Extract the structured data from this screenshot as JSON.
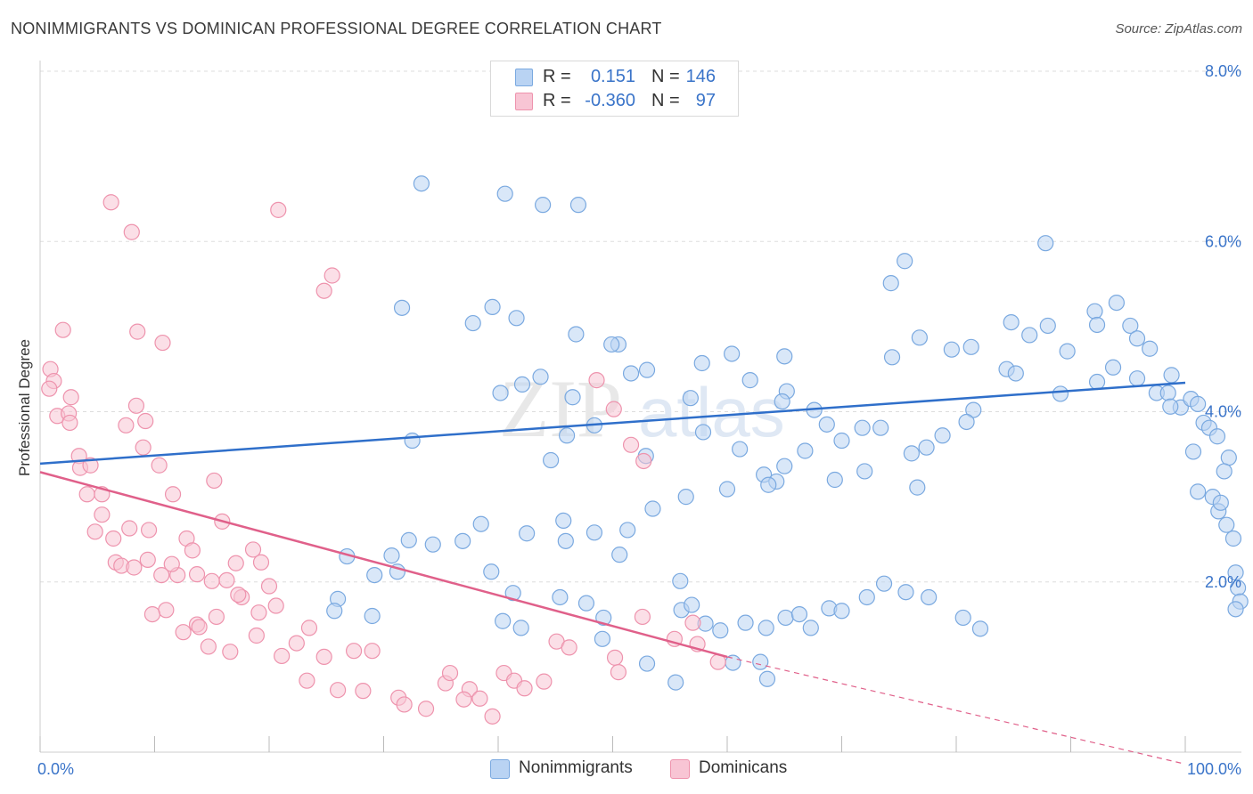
{
  "title": "NONIMMIGRANTS VS DOMINICAN PROFESSIONAL DEGREE CORRELATION CHART",
  "source": "Source: ZipAtlas.com",
  "watermark_zip": "ZIP",
  "watermark_atlas": "atlas",
  "colors": {
    "blue_fill": "#b9d3f3",
    "blue_stroke": "#7aa9e0",
    "blue_line": "#2f6fca",
    "pink_fill": "#f8c5d4",
    "pink_stroke": "#ee93ad",
    "pink_line": "#e0608a",
    "axis_text": "#3a74c9",
    "grid": "#dddddd"
  },
  "legend_top": {
    "rows": [
      {
        "r_label": "R =",
        "r_value": "0.151",
        "n_label": "N =",
        "n_value": "146",
        "color": "blue"
      },
      {
        "r_label": "R =",
        "r_value": "-0.360",
        "n_label": "N =",
        "n_value": "97",
        "color": "pink"
      }
    ]
  },
  "legend_bottom": {
    "items": [
      {
        "label": "Nonimmigrants",
        "color": "blue"
      },
      {
        "label": "Dominicans",
        "color": "pink"
      }
    ]
  },
  "chart_data": {
    "type": "scatter",
    "title": "NONIMMIGRANTS VS DOMINICAN PROFESSIONAL DEGREE CORRELATION CHART",
    "xlabel": "",
    "ylabel": "Professional Degree",
    "xlim": [
      0,
      100
    ],
    "ylim": [
      0,
      8.0
    ],
    "x_tick_labels": [
      "0.0%",
      "100.0%"
    ],
    "y_ticks": [
      2,
      4,
      6,
      8
    ],
    "y_tick_labels": [
      "2.0%",
      "4.0%",
      "6.0%",
      "8.0%"
    ],
    "grid": true,
    "legend_position": "top-center",
    "series": [
      {
        "name": "Nonimmigrants",
        "color": "blue",
        "r": 0.151,
        "n": 146,
        "trend": {
          "x": [
            0,
            100
          ],
          "y": [
            3.39,
            4.34
          ]
        },
        "points": [
          [
            40.6,
            6.56
          ],
          [
            43.9,
            6.43
          ],
          [
            47.0,
            6.43
          ],
          [
            33.3,
            6.68
          ],
          [
            87.8,
            5.98
          ],
          [
            75.5,
            5.77
          ],
          [
            74.3,
            5.51
          ],
          [
            39.5,
            5.23
          ],
          [
            37.8,
            5.04
          ],
          [
            41.6,
            5.1
          ],
          [
            31.6,
            5.22
          ],
          [
            46.8,
            4.91
          ],
          [
            50.5,
            4.79
          ],
          [
            49.9,
            4.79
          ],
          [
            65.0,
            4.65
          ],
          [
            53.0,
            4.49
          ],
          [
            43.7,
            4.41
          ],
          [
            57.8,
            4.57
          ],
          [
            60.4,
            4.68
          ],
          [
            56.8,
            4.16
          ],
          [
            46.0,
            3.72
          ],
          [
            57.9,
            3.76
          ],
          [
            51.6,
            4.45
          ],
          [
            62.0,
            4.37
          ],
          [
            65.2,
            4.24
          ],
          [
            64.8,
            4.12
          ],
          [
            32.5,
            3.66
          ],
          [
            48.4,
            3.84
          ],
          [
            42.1,
            4.32
          ],
          [
            40.2,
            4.22
          ],
          [
            44.6,
            3.43
          ],
          [
            46.5,
            4.17
          ],
          [
            52.9,
            3.48
          ],
          [
            70.0,
            3.66
          ],
          [
            61.1,
            3.56
          ],
          [
            63.2,
            3.26
          ],
          [
            67.6,
            4.02
          ],
          [
            68.7,
            3.85
          ],
          [
            71.8,
            3.81
          ],
          [
            73.4,
            3.81
          ],
          [
            74.4,
            4.64
          ],
          [
            76.8,
            4.87
          ],
          [
            79.6,
            4.73
          ],
          [
            81.3,
            4.76
          ],
          [
            84.4,
            4.5
          ],
          [
            85.2,
            4.45
          ],
          [
            89.1,
            4.21
          ],
          [
            89.7,
            4.71
          ],
          [
            92.3,
            4.35
          ],
          [
            93.7,
            4.52
          ],
          [
            84.8,
            5.05
          ],
          [
            86.4,
            4.9
          ],
          [
            88.0,
            5.01
          ],
          [
            92.1,
            5.18
          ],
          [
            92.3,
            5.02
          ],
          [
            94.0,
            5.28
          ],
          [
            95.2,
            5.01
          ],
          [
            95.8,
            4.86
          ],
          [
            96.9,
            4.74
          ],
          [
            95.8,
            4.39
          ],
          [
            97.5,
            4.22
          ],
          [
            99.6,
            4.05
          ],
          [
            98.8,
            4.43
          ],
          [
            98.5,
            4.22
          ],
          [
            98.7,
            4.06
          ],
          [
            100.5,
            4.15
          ],
          [
            101.1,
            4.09
          ],
          [
            101.6,
            3.87
          ],
          [
            102.1,
            3.81
          ],
          [
            102.8,
            3.71
          ],
          [
            100.7,
            3.53
          ],
          [
            101.1,
            3.06
          ],
          [
            102.4,
            3.0
          ],
          [
            102.9,
            2.83
          ],
          [
            103.6,
            2.67
          ],
          [
            104.2,
            2.51
          ],
          [
            104.4,
            2.11
          ],
          [
            104.6,
            1.93
          ],
          [
            104.8,
            1.77
          ],
          [
            104.4,
            1.68
          ],
          [
            103.8,
            3.46
          ],
          [
            103.4,
            3.3
          ],
          [
            103.1,
            2.93
          ],
          [
            81.5,
            4.02
          ],
          [
            80.9,
            3.88
          ],
          [
            78.8,
            3.72
          ],
          [
            77.4,
            3.58
          ],
          [
            76.1,
            3.51
          ],
          [
            76.6,
            3.11
          ],
          [
            72.0,
            3.3
          ],
          [
            69.4,
            3.2
          ],
          [
            66.8,
            3.54
          ],
          [
            65.0,
            3.36
          ],
          [
            64.3,
            3.18
          ],
          [
            63.6,
            3.14
          ],
          [
            60.0,
            3.09
          ],
          [
            56.4,
            3.0
          ],
          [
            53.5,
            2.86
          ],
          [
            51.3,
            2.61
          ],
          [
            50.6,
            2.32
          ],
          [
            48.4,
            2.58
          ],
          [
            45.7,
            2.72
          ],
          [
            45.9,
            2.48
          ],
          [
            42.5,
            2.57
          ],
          [
            38.5,
            2.68
          ],
          [
            36.9,
            2.48
          ],
          [
            34.3,
            2.44
          ],
          [
            32.2,
            2.49
          ],
          [
            30.7,
            2.31
          ],
          [
            31.2,
            2.12
          ],
          [
            29.2,
            2.08
          ],
          [
            26.8,
            2.3
          ],
          [
            26.0,
            1.8
          ],
          [
            25.7,
            1.66
          ],
          [
            29.0,
            1.6
          ],
          [
            39.4,
            2.12
          ],
          [
            41.3,
            1.87
          ],
          [
            45.4,
            1.82
          ],
          [
            47.7,
            1.75
          ],
          [
            56.0,
            1.67
          ],
          [
            49.2,
            1.58
          ],
          [
            55.9,
            2.01
          ],
          [
            56.9,
            1.73
          ],
          [
            58.1,
            1.51
          ],
          [
            59.4,
            1.43
          ],
          [
            61.6,
            1.52
          ],
          [
            63.4,
            1.46
          ],
          [
            65.1,
            1.58
          ],
          [
            66.3,
            1.62
          ],
          [
            67.3,
            1.46
          ],
          [
            68.9,
            1.69
          ],
          [
            70.0,
            1.66
          ],
          [
            72.2,
            1.82
          ],
          [
            73.7,
            1.98
          ],
          [
            75.6,
            1.88
          ],
          [
            77.6,
            1.82
          ],
          [
            80.6,
            1.58
          ],
          [
            82.1,
            1.45
          ],
          [
            60.5,
            1.05
          ],
          [
            62.9,
            1.06
          ],
          [
            63.5,
            0.86
          ],
          [
            40.4,
            1.54
          ],
          [
            42.0,
            1.46
          ],
          [
            49.1,
            1.33
          ],
          [
            53.0,
            1.04
          ],
          [
            55.5,
            0.82
          ]
        ]
      },
      {
        "name": "Dominicans",
        "color": "pink",
        "r": -0.36,
        "n": 97,
        "trend": {
          "x": [
            0,
            60
          ],
          "y": [
            3.29,
            1.12
          ],
          "dashed_to": {
            "x": 100,
            "y": -0.14
          }
        },
        "points": [
          [
            6.2,
            6.46
          ],
          [
            8.0,
            6.11
          ],
          [
            20.8,
            6.37
          ],
          [
            25.5,
            5.6
          ],
          [
            24.8,
            5.42
          ],
          [
            2.0,
            4.96
          ],
          [
            8.5,
            4.94
          ],
          [
            10.7,
            4.81
          ],
          [
            0.9,
            4.5
          ],
          [
            1.2,
            4.36
          ],
          [
            0.8,
            4.27
          ],
          [
            2.7,
            4.17
          ],
          [
            8.4,
            4.07
          ],
          [
            1.5,
            3.95
          ],
          [
            2.5,
            3.98
          ],
          [
            2.6,
            3.87
          ],
          [
            7.5,
            3.84
          ],
          [
            9.2,
            3.89
          ],
          [
            3.4,
            3.48
          ],
          [
            3.5,
            3.34
          ],
          [
            4.4,
            3.37
          ],
          [
            9.0,
            3.58
          ],
          [
            10.4,
            3.37
          ],
          [
            4.1,
            3.03
          ],
          [
            5.4,
            3.03
          ],
          [
            11.6,
            3.03
          ],
          [
            15.2,
            3.19
          ],
          [
            5.4,
            2.79
          ],
          [
            4.8,
            2.59
          ],
          [
            6.4,
            2.51
          ],
          [
            7.8,
            2.63
          ],
          [
            9.5,
            2.61
          ],
          [
            12.8,
            2.51
          ],
          [
            15.9,
            2.71
          ],
          [
            18.6,
            2.38
          ],
          [
            13.3,
            2.37
          ],
          [
            12.0,
            2.08
          ],
          [
            9.4,
            2.26
          ],
          [
            6.6,
            2.23
          ],
          [
            7.1,
            2.19
          ],
          [
            8.2,
            2.17
          ],
          [
            10.6,
            2.08
          ],
          [
            11.5,
            2.21
          ],
          [
            13.7,
            2.09
          ],
          [
            15.0,
            2.01
          ],
          [
            16.3,
            2.02
          ],
          [
            17.1,
            2.22
          ],
          [
            19.3,
            2.23
          ],
          [
            20.0,
            1.95
          ],
          [
            17.6,
            1.82
          ],
          [
            17.3,
            1.85
          ],
          [
            19.1,
            1.64
          ],
          [
            20.6,
            1.72
          ],
          [
            15.4,
            1.59
          ],
          [
            13.7,
            1.5
          ],
          [
            13.9,
            1.47
          ],
          [
            11.0,
            1.67
          ],
          [
            9.8,
            1.62
          ],
          [
            12.5,
            1.41
          ],
          [
            14.7,
            1.24
          ],
          [
            16.6,
            1.18
          ],
          [
            18.9,
            1.37
          ],
          [
            21.1,
            1.13
          ],
          [
            22.4,
            1.28
          ],
          [
            23.5,
            1.46
          ],
          [
            24.8,
            1.12
          ],
          [
            27.4,
            1.19
          ],
          [
            29.0,
            1.19
          ],
          [
            23.3,
            0.84
          ],
          [
            26.0,
            0.73
          ],
          [
            28.2,
            0.72
          ],
          [
            31.3,
            0.64
          ],
          [
            31.8,
            0.56
          ],
          [
            33.7,
            0.51
          ],
          [
            35.4,
            0.81
          ],
          [
            37.5,
            0.74
          ],
          [
            35.8,
            0.93
          ],
          [
            37.0,
            0.62
          ],
          [
            38.4,
            0.63
          ],
          [
            39.5,
            0.42
          ],
          [
            40.5,
            0.93
          ],
          [
            41.4,
            0.84
          ],
          [
            42.3,
            0.75
          ],
          [
            44.0,
            0.83
          ],
          [
            45.1,
            1.3
          ],
          [
            46.2,
            1.23
          ],
          [
            50.2,
            1.11
          ],
          [
            52.6,
            1.59
          ],
          [
            50.5,
            0.94
          ],
          [
            55.4,
            1.33
          ],
          [
            57.4,
            1.27
          ],
          [
            59.2,
            1.06
          ],
          [
            48.6,
            4.37
          ],
          [
            50.1,
            4.03
          ],
          [
            51.6,
            3.61
          ],
          [
            52.7,
            3.42
          ],
          [
            57.0,
            1.52
          ]
        ]
      }
    ]
  }
}
